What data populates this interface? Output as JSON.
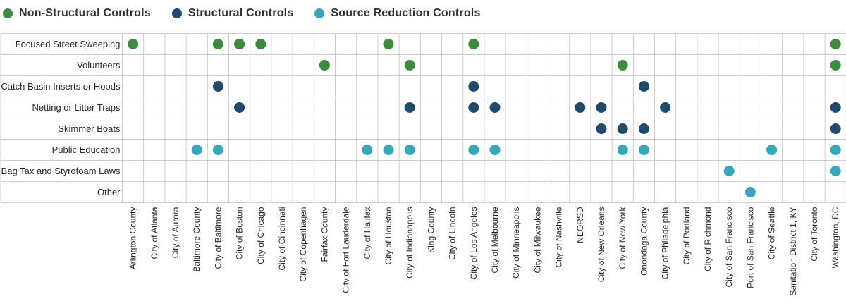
{
  "colors": {
    "non_structural": "#3d8b3d",
    "structural": "#1f4a6e",
    "source_reduction": "#34a8bd",
    "grid": "#cfcfcf"
  },
  "legend": [
    {
      "key": "non_structural",
      "label": "Non-Structural Controls"
    },
    {
      "key": "structural",
      "label": "Structural Controls"
    },
    {
      "key": "source_reduction",
      "label": "Source Reduction Controls"
    }
  ],
  "chart_data": {
    "type": "table",
    "rows": [
      {
        "label": "Focused Street Sweeping",
        "category": "non_structural"
      },
      {
        "label": "Volunteers",
        "category": "non_structural"
      },
      {
        "label": "Catch Basin Inserts or Hoods",
        "category": "structural"
      },
      {
        "label": "Netting or Litter Traps",
        "category": "structural"
      },
      {
        "label": "Skimmer Boats",
        "category": "structural"
      },
      {
        "label": "Public Education",
        "category": "source_reduction"
      },
      {
        "label": "Bag Tax and Styrofoam Laws",
        "category": "source_reduction"
      },
      {
        "label": "Other",
        "category": "source_reduction"
      }
    ],
    "columns": [
      "Arlington County",
      "City of Atlanta",
      "City of Aurora",
      "Baltimore County",
      "City of Baltimore",
      "City of Boston",
      "City of Chicago",
      "City of Cincinnati",
      "City of Copenhagen",
      "Fairfax County",
      "City of Fort Lauderdale",
      "City of Halifax",
      "City of Houston",
      "City of Indianapolis",
      "King County",
      "City of Lincoln",
      "City of Los Angeles",
      "City of Melbourne",
      "City of Minneapolis",
      "City of Milwaukee",
      "City of Nashville",
      "NEORSD",
      "City of New Orleans",
      "City of New York",
      "Onondaga County",
      "City of Philadelphia",
      "City of Portland",
      "City of Richmond",
      "City of San Francisco",
      "Port of San Francisco",
      "City of Seattle",
      "Sanitation District 1, KY",
      "City of Toronto",
      "Washington, DC"
    ],
    "marks": [
      [
        0,
        4,
        5,
        6,
        12,
        16,
        33
      ],
      [
        9,
        13,
        23,
        33
      ],
      [
        4,
        16,
        24
      ],
      [
        5,
        13,
        16,
        17,
        21,
        22,
        25,
        33
      ],
      [
        22,
        23,
        24,
        33
      ],
      [
        3,
        4,
        11,
        12,
        13,
        16,
        17,
        23,
        24,
        30,
        33
      ],
      [
        28,
        33
      ],
      [
        29
      ]
    ]
  }
}
